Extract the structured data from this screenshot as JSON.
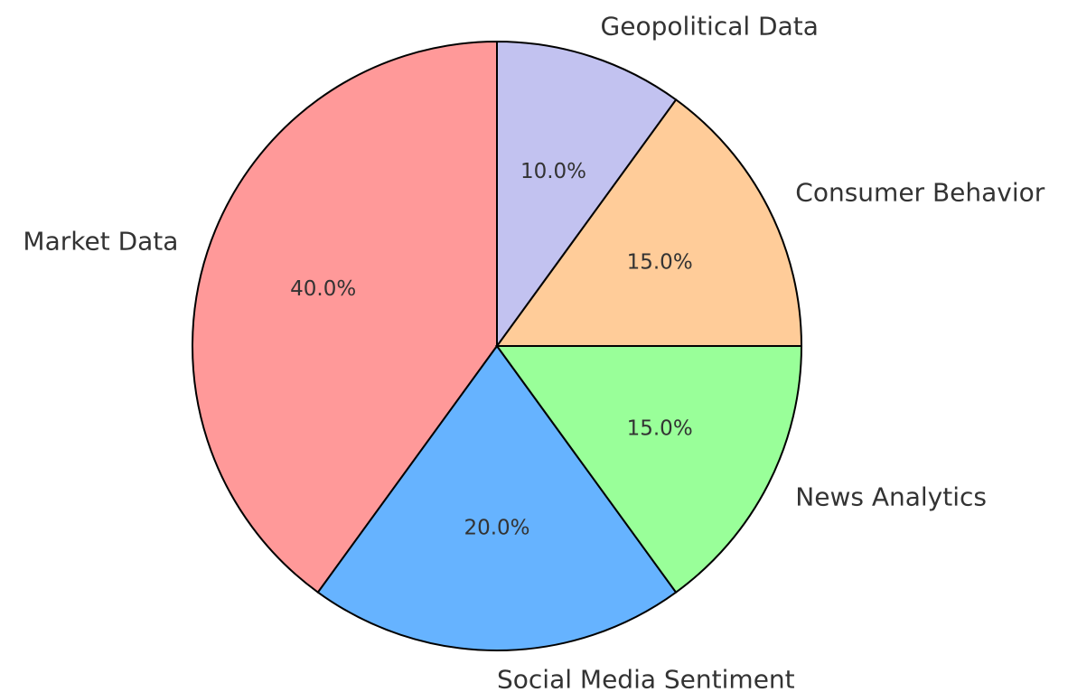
{
  "chart_data": {
    "type": "pie",
    "categories": [
      "Market Data",
      "Social Media Sentiment",
      "News Analytics",
      "Consumer Behavior",
      "Geopolitical Data"
    ],
    "values": [
      40,
      20,
      15,
      15,
      10
    ],
    "value_labels": [
      "40.0%",
      "20.0%",
      "15.0%",
      "15.0%",
      "10.0%"
    ],
    "colors": [
      "#ff9999",
      "#66b3ff",
      "#99ff99",
      "#ffcc99",
      "#c2c2f0"
    ]
  }
}
